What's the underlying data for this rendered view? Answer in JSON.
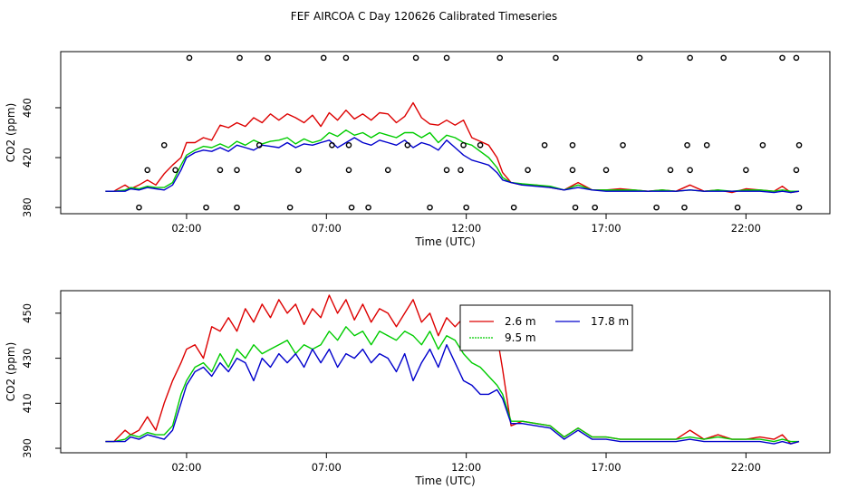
{
  "title": "FEF AIRCOA C  Day 120626  Calibrated Timeseries",
  "colors": {
    "s1": "#dd0000",
    "s2": "#00cc00",
    "s3": "#0000cc",
    "flag": "#000000"
  },
  "chart_data": [
    {
      "type": "line",
      "title": "",
      "xlabel": "Time (UTC)",
      "ylabel": "CO2 (ppm)",
      "xlim": [
        -2.5,
        25.0
      ],
      "ylim": [
        375,
        505
      ],
      "xticks": [
        2,
        7,
        12,
        17,
        22
      ],
      "xtick_labels": [
        "02:00",
        "07:00",
        "12:00",
        "17:00",
        "22:00"
      ],
      "yticks": [
        380,
        420,
        460
      ],
      "grid": false,
      "series": [
        {
          "x": [
            -0.9,
            -0.6,
            -0.2,
            0.0,
            0.3,
            0.6,
            0.9,
            1.2,
            1.5,
            1.8,
            2.0,
            2.3,
            2.6,
            2.9,
            3.2,
            3.5,
            3.8,
            4.1,
            4.4,
            4.7,
            5.0,
            5.3,
            5.6,
            5.9,
            6.2,
            6.5,
            6.8,
            7.1,
            7.4,
            7.7,
            8.0,
            8.3,
            8.6,
            8.9,
            9.2,
            9.5,
            9.8,
            10.1,
            10.4,
            10.7,
            11.0,
            11.3,
            11.6,
            11.9,
            12.2,
            12.5,
            12.8,
            13.1,
            13.3,
            13.6,
            14.0,
            14.5,
            15.0,
            15.5,
            16.0,
            16.5,
            17.0,
            17.5,
            18.0,
            18.5,
            19.0,
            19.5,
            20.0,
            20.5,
            21.0,
            21.5,
            22.0,
            22.5,
            23.0,
            23.3,
            23.6,
            23.9
          ],
          "y": [
            393,
            393,
            398,
            395,
            398,
            402,
            398,
            407,
            414,
            420,
            432,
            432,
            436,
            434,
            446,
            444,
            448,
            445,
            452,
            448,
            455,
            450,
            455,
            452,
            448,
            454,
            445,
            456,
            450,
            458,
            451,
            455,
            450,
            456,
            455,
            448,
            453,
            464,
            452,
            447,
            446,
            450,
            446,
            450,
            436,
            433,
            430,
            420,
            408,
            400,
            398,
            398,
            396,
            394,
            400,
            394,
            394,
            395,
            394,
            393,
            394,
            393,
            398,
            393,
            394,
            392,
            395,
            394,
            393,
            397,
            392,
            393
          ]
        },
        {
          "x": [
            -0.9,
            -0.6,
            -0.2,
            0.0,
            0.3,
            0.6,
            0.9,
            1.2,
            1.5,
            1.8,
            2.0,
            2.3,
            2.6,
            2.9,
            3.2,
            3.5,
            3.8,
            4.1,
            4.4,
            4.7,
            5.0,
            5.3,
            5.6,
            5.9,
            6.2,
            6.5,
            6.8,
            7.1,
            7.4,
            7.7,
            8.0,
            8.3,
            8.6,
            8.9,
            9.2,
            9.5,
            9.8,
            10.1,
            10.4,
            10.7,
            11.0,
            11.3,
            11.6,
            11.9,
            12.2,
            12.5,
            12.8,
            13.1,
            13.3,
            13.6,
            14.0,
            14.5,
            15.0,
            15.5,
            16.0,
            16.5,
            17.0,
            17.5,
            18.0,
            18.5,
            19.0,
            19.5,
            20.0,
            20.5,
            21.0,
            21.5,
            22.0,
            22.5,
            23.0,
            23.3,
            23.6,
            23.9
          ],
          "y": [
            393,
            393,
            394,
            396,
            395,
            397,
            396,
            396,
            400,
            414,
            422,
            426,
            429,
            428,
            431,
            428,
            433,
            430,
            434,
            431,
            433,
            434,
            436,
            431,
            435,
            432,
            434,
            440,
            437,
            442,
            438,
            440,
            436,
            440,
            438,
            436,
            440,
            440,
            436,
            440,
            432,
            438,
            436,
            432,
            430,
            425,
            420,
            412,
            404,
            400,
            399,
            398,
            397,
            394,
            398,
            394,
            394,
            394,
            394,
            393,
            394,
            393,
            394,
            393,
            394,
            393,
            394,
            394,
            393,
            394,
            393,
            393
          ]
        },
        {
          "x": [
            -0.9,
            -0.6,
            -0.2,
            0.0,
            0.3,
            0.6,
            0.9,
            1.2,
            1.5,
            1.8,
            2.0,
            2.3,
            2.6,
            2.9,
            3.2,
            3.5,
            3.8,
            4.1,
            4.4,
            4.7,
            5.0,
            5.3,
            5.6,
            5.9,
            6.2,
            6.5,
            6.8,
            7.1,
            7.4,
            7.7,
            8.0,
            8.3,
            8.6,
            8.9,
            9.2,
            9.5,
            9.8,
            10.1,
            10.4,
            10.7,
            11.0,
            11.3,
            11.6,
            11.9,
            12.2,
            12.5,
            12.8,
            13.1,
            13.3,
            13.6,
            14.0,
            14.5,
            15.0,
            15.5,
            16.0,
            16.5,
            17.0,
            17.5,
            18.0,
            18.5,
            19.0,
            19.5,
            20.0,
            20.5,
            21.0,
            21.5,
            22.0,
            22.5,
            23.0,
            23.3,
            23.6,
            23.9
          ],
          "y": [
            393,
            393,
            393,
            395,
            394,
            396,
            395,
            394,
            398,
            410,
            420,
            424,
            426,
            425,
            428,
            425,
            430,
            428,
            426,
            430,
            429,
            428,
            432,
            428,
            431,
            430,
            432,
            434,
            428,
            432,
            436,
            432,
            430,
            434,
            432,
            430,
            434,
            428,
            432,
            430,
            426,
            434,
            428,
            422,
            418,
            416,
            414,
            408,
            402,
            400,
            398,
            397,
            396,
            394,
            396,
            394,
            393,
            393,
            393,
            393,
            393,
            393,
            394,
            393,
            393,
            393,
            393,
            393,
            392,
            393,
            392,
            393
          ]
        }
      ],
      "flag_markers": {
        "x": [
          0.3,
          0.6,
          1.2,
          1.6,
          2.1,
          2.7,
          3.2,
          3.8,
          3.8,
          3.9,
          4.6,
          4.9,
          5.7,
          6.0,
          6.9,
          7.2,
          7.7,
          7.8,
          7.8,
          7.9,
          8.5,
          9.2,
          9.9,
          10.2,
          10.7,
          11.3,
          11.3,
          11.8,
          11.9,
          12.0,
          12.5,
          13.2,
          13.7,
          14.2,
          14.8,
          15.2,
          15.8,
          15.8,
          15.9,
          16.6,
          17.0,
          17.6,
          18.2,
          18.8,
          19.3,
          19.8,
          19.9,
          20.0,
          20.0,
          20.6,
          21.2,
          21.7,
          22.0,
          22.6,
          23.3,
          23.8,
          23.8,
          23.9,
          23.9
        ],
        "y": [
          380,
          410,
          430,
          410,
          500,
          380,
          410,
          380,
          410,
          500,
          430,
          500,
          380,
          410,
          500,
          430,
          500,
          410,
          430,
          380,
          380,
          410,
          430,
          500,
          380,
          410,
          500,
          410,
          430,
          380,
          430,
          500,
          380,
          410,
          430,
          500,
          410,
          430,
          380,
          380,
          410,
          430,
          500,
          380,
          410,
          380,
          430,
          410,
          500,
          430,
          500,
          380,
          410,
          430,
          500,
          500,
          410,
          430,
          380
        ]
      }
    },
    {
      "type": "line",
      "title": "",
      "xlabel": "Time (UTC)",
      "ylabel": "CO2 (ppm)",
      "xlim": [
        -2.5,
        25.0
      ],
      "ylim": [
        388,
        460
      ],
      "xticks": [
        2,
        7,
        12,
        17,
        22
      ],
      "xtick_labels": [
        "02:00",
        "07:00",
        "12:00",
        "17:00",
        "22:00"
      ],
      "yticks": [
        390,
        410,
        430,
        450
      ],
      "grid": false,
      "legend": {
        "placement": "top-right",
        "entries": [
          "2.6 m",
          "9.5 m",
          "17.8 m"
        ]
      },
      "series": [
        {
          "name": "2.6 m",
          "x": [
            -0.9,
            -0.6,
            -0.2,
            0.0,
            0.3,
            0.6,
            0.9,
            1.2,
            1.5,
            1.8,
            2.0,
            2.3,
            2.6,
            2.9,
            3.2,
            3.5,
            3.8,
            4.1,
            4.4,
            4.7,
            5.0,
            5.3,
            5.6,
            5.9,
            6.2,
            6.5,
            6.8,
            7.1,
            7.4,
            7.7,
            8.0,
            8.3,
            8.6,
            8.9,
            9.2,
            9.5,
            9.8,
            10.1,
            10.4,
            10.7,
            11.0,
            11.3,
            11.6,
            11.9,
            12.2,
            12.5,
            12.8,
            13.1,
            13.3,
            13.6,
            14.0,
            14.5,
            15.0,
            15.5,
            16.0,
            16.5,
            17.0,
            17.5,
            18.0,
            18.5,
            19.0,
            19.5,
            20.0,
            20.5,
            21.0,
            21.5,
            22.0,
            22.5,
            23.0,
            23.3,
            23.6,
            23.9
          ],
          "y": [
            393,
            393,
            398,
            396,
            398,
            404,
            398,
            410,
            420,
            428,
            434,
            436,
            430,
            444,
            442,
            448,
            442,
            452,
            446,
            454,
            448,
            456,
            450,
            454,
            445,
            452,
            448,
            458,
            450,
            456,
            447,
            454,
            446,
            452,
            450,
            444,
            450,
            456,
            446,
            450,
            440,
            448,
            444,
            448,
            438,
            438,
            436,
            440,
            425,
            400,
            402,
            401,
            400,
            395,
            399,
            395,
            395,
            394,
            394,
            394,
            394,
            394,
            398,
            394,
            396,
            394,
            394,
            395,
            394,
            396,
            392,
            393
          ]
        },
        {
          "name": "9.5 m",
          "x": [
            -0.9,
            -0.6,
            -0.2,
            0.0,
            0.3,
            0.6,
            0.9,
            1.2,
            1.5,
            1.8,
            2.0,
            2.3,
            2.6,
            2.9,
            3.2,
            3.5,
            3.8,
            4.1,
            4.4,
            4.7,
            5.0,
            5.3,
            5.6,
            5.9,
            6.2,
            6.5,
            6.8,
            7.1,
            7.4,
            7.7,
            8.0,
            8.3,
            8.6,
            8.9,
            9.2,
            9.5,
            9.8,
            10.1,
            10.4,
            10.7,
            11.0,
            11.3,
            11.6,
            11.9,
            12.2,
            12.5,
            12.8,
            13.1,
            13.3,
            13.6,
            14.0,
            14.5,
            15.0,
            15.5,
            16.0,
            16.5,
            17.0,
            17.5,
            18.0,
            18.5,
            19.0,
            19.5,
            20.0,
            20.5,
            21.0,
            21.5,
            22.0,
            22.5,
            23.0,
            23.3,
            23.6,
            23.9
          ],
          "y": [
            393,
            393,
            394,
            396,
            395,
            397,
            396,
            396,
            400,
            414,
            420,
            426,
            428,
            424,
            432,
            426,
            434,
            430,
            436,
            432,
            434,
            436,
            438,
            432,
            436,
            434,
            436,
            442,
            438,
            444,
            440,
            442,
            436,
            442,
            440,
            438,
            442,
            440,
            436,
            442,
            434,
            440,
            438,
            432,
            428,
            426,
            422,
            418,
            414,
            402,
            402,
            401,
            400,
            395,
            399,
            395,
            395,
            394,
            394,
            394,
            394,
            394,
            395,
            394,
            395,
            394,
            394,
            394,
            393,
            394,
            393,
            393
          ]
        },
        {
          "name": "17.8 m",
          "x": [
            -0.9,
            -0.6,
            -0.2,
            0.0,
            0.3,
            0.6,
            0.9,
            1.2,
            1.5,
            1.8,
            2.0,
            2.3,
            2.6,
            2.9,
            3.2,
            3.5,
            3.8,
            4.1,
            4.4,
            4.7,
            5.0,
            5.3,
            5.6,
            5.9,
            6.2,
            6.5,
            6.8,
            7.1,
            7.4,
            7.7,
            8.0,
            8.3,
            8.6,
            8.9,
            9.2,
            9.5,
            9.8,
            10.1,
            10.4,
            10.7,
            11.0,
            11.3,
            11.6,
            11.9,
            12.2,
            12.5,
            12.8,
            13.1,
            13.3,
            13.6,
            14.0,
            14.5,
            15.0,
            15.5,
            16.0,
            16.5,
            17.0,
            17.5,
            18.0,
            18.5,
            19.0,
            19.5,
            20.0,
            20.5,
            21.0,
            21.5,
            22.0,
            22.5,
            23.0,
            23.3,
            23.6,
            23.9
          ],
          "y": [
            393,
            393,
            393,
            395,
            394,
            396,
            395,
            394,
            398,
            410,
            418,
            424,
            426,
            422,
            428,
            424,
            430,
            428,
            420,
            430,
            426,
            432,
            428,
            432,
            426,
            434,
            428,
            434,
            426,
            432,
            430,
            434,
            428,
            432,
            430,
            424,
            432,
            420,
            428,
            434,
            426,
            436,
            428,
            420,
            418,
            414,
            414,
            416,
            412,
            401,
            401,
            400,
            399,
            394,
            398,
            394,
            394,
            393,
            393,
            393,
            393,
            393,
            394,
            393,
            393,
            393,
            393,
            393,
            392,
            393,
            392,
            393
          ]
        }
      ]
    }
  ]
}
